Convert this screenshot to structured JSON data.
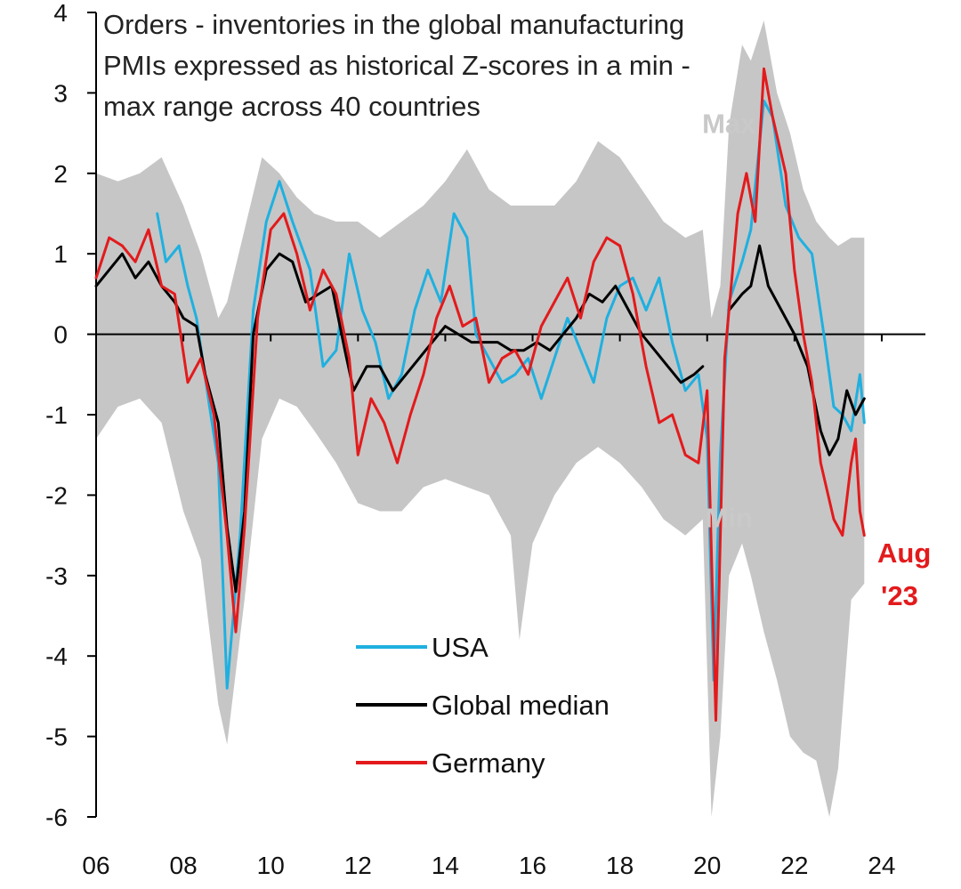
{
  "chart_data": {
    "type": "line",
    "title_lines": [
      "Orders - inventories in the global manufacturing",
      "PMIs expressed as historical Z-scores in a min -",
      "max range across 40 countries"
    ],
    "xlabel": "",
    "ylabel": "",
    "xlim": [
      2006,
      2025
    ],
    "ylim": [
      -6,
      4
    ],
    "x_ticks": [
      {
        "value": 2006,
        "label": "06"
      },
      {
        "value": 2008,
        "label": "08"
      },
      {
        "value": 2010,
        "label": "10"
      },
      {
        "value": 2012,
        "label": "12"
      },
      {
        "value": 2014,
        "label": "14"
      },
      {
        "value": 2016,
        "label": "16"
      },
      {
        "value": 2018,
        "label": "18"
      },
      {
        "value": 2020,
        "label": "20"
      },
      {
        "value": 2022,
        "label": "22"
      },
      {
        "value": 2024,
        "label": "24"
      }
    ],
    "y_ticks": [
      {
        "value": 4,
        "label": "4"
      },
      {
        "value": 3,
        "label": "3"
      },
      {
        "value": 2,
        "label": "2"
      },
      {
        "value": 1,
        "label": "1"
      },
      {
        "value": 0,
        "label": "0"
      },
      {
        "value": -1,
        "label": "-1"
      },
      {
        "value": -2,
        "label": "-2"
      },
      {
        "value": -3,
        "label": "-3"
      },
      {
        "value": -4,
        "label": "-4"
      },
      {
        "value": -5,
        "label": "-5"
      },
      {
        "value": -6,
        "label": "-6"
      }
    ],
    "band": {
      "name": "Min-max range",
      "color": "#c6c6c6",
      "max_label": "Max",
      "min_label": "Min",
      "max_label_at": {
        "x": 2020.5,
        "y": 2.5
      },
      "min_label_at": {
        "x": 2020.5,
        "y": -2.4
      },
      "upper": [
        [
          2006.0,
          2.0
        ],
        [
          2006.5,
          1.9
        ],
        [
          2007.0,
          2.0
        ],
        [
          2007.5,
          2.2
        ],
        [
          2008.0,
          1.6
        ],
        [
          2008.4,
          1.0
        ],
        [
          2008.8,
          0.2
        ],
        [
          2009.0,
          0.4
        ],
        [
          2009.4,
          1.3
        ],
        [
          2009.8,
          2.2
        ],
        [
          2010.2,
          2.0
        ],
        [
          2010.6,
          1.7
        ],
        [
          2011.0,
          1.5
        ],
        [
          2011.5,
          1.4
        ],
        [
          2012.0,
          1.4
        ],
        [
          2012.5,
          1.2
        ],
        [
          2013.0,
          1.4
        ],
        [
          2013.5,
          1.6
        ],
        [
          2014.0,
          1.9
        ],
        [
          2014.5,
          2.3
        ],
        [
          2015.0,
          1.8
        ],
        [
          2015.5,
          1.6
        ],
        [
          2016.0,
          1.6
        ],
        [
          2016.5,
          1.6
        ],
        [
          2017.0,
          1.9
        ],
        [
          2017.5,
          2.4
        ],
        [
          2018.0,
          2.2
        ],
        [
          2018.5,
          1.8
        ],
        [
          2019.0,
          1.4
        ],
        [
          2019.5,
          1.2
        ],
        [
          2019.9,
          1.3
        ],
        [
          2020.1,
          0.2
        ],
        [
          2020.3,
          0.6
        ],
        [
          2020.5,
          2.6
        ],
        [
          2020.8,
          3.6
        ],
        [
          2021.0,
          3.4
        ],
        [
          2021.3,
          3.9
        ],
        [
          2021.6,
          3.0
        ],
        [
          2021.9,
          2.5
        ],
        [
          2022.2,
          1.8
        ],
        [
          2022.5,
          1.4
        ],
        [
          2022.8,
          1.2
        ],
        [
          2023.0,
          1.1
        ],
        [
          2023.3,
          1.2
        ],
        [
          2023.6,
          1.2
        ]
      ],
      "lower": [
        [
          2006.0,
          -1.3
        ],
        [
          2006.5,
          -0.9
        ],
        [
          2007.0,
          -0.8
        ],
        [
          2007.5,
          -1.1
        ],
        [
          2008.0,
          -2.2
        ],
        [
          2008.4,
          -2.8
        ],
        [
          2008.8,
          -4.6
        ],
        [
          2009.0,
          -5.1
        ],
        [
          2009.4,
          -3.3
        ],
        [
          2009.8,
          -1.3
        ],
        [
          2010.2,
          -0.8
        ],
        [
          2010.6,
          -0.9
        ],
        [
          2011.0,
          -1.2
        ],
        [
          2011.5,
          -1.6
        ],
        [
          2012.0,
          -2.1
        ],
        [
          2012.5,
          -2.2
        ],
        [
          2013.0,
          -2.2
        ],
        [
          2013.5,
          -1.9
        ],
        [
          2014.0,
          -1.8
        ],
        [
          2014.5,
          -1.9
        ],
        [
          2015.0,
          -2.0
        ],
        [
          2015.5,
          -2.5
        ],
        [
          2015.7,
          -3.8
        ],
        [
          2016.0,
          -2.6
        ],
        [
          2016.5,
          -2.0
        ],
        [
          2017.0,
          -1.6
        ],
        [
          2017.5,
          -1.4
        ],
        [
          2018.0,
          -1.6
        ],
        [
          2018.5,
          -1.9
        ],
        [
          2019.0,
          -2.3
        ],
        [
          2019.5,
          -2.5
        ],
        [
          2019.9,
          -2.3
        ],
        [
          2020.1,
          -6.0
        ],
        [
          2020.3,
          -5.0
        ],
        [
          2020.5,
          -3.0
        ],
        [
          2020.8,
          -2.6
        ],
        [
          2021.0,
          -3.0
        ],
        [
          2021.3,
          -3.7
        ],
        [
          2021.6,
          -4.3
        ],
        [
          2021.9,
          -5.0
        ],
        [
          2022.2,
          -5.2
        ],
        [
          2022.5,
          -5.3
        ],
        [
          2022.8,
          -6.0
        ],
        [
          2023.0,
          -5.4
        ],
        [
          2023.3,
          -3.3
        ],
        [
          2023.6,
          -3.1
        ]
      ]
    },
    "series": [
      {
        "name": "USA",
        "color": "#1fb0e0",
        "points": [
          [
            2007.4,
            1.5
          ],
          [
            2007.6,
            0.9
          ],
          [
            2007.9,
            1.1
          ],
          [
            2008.1,
            0.6
          ],
          [
            2008.3,
            0.2
          ],
          [
            2008.6,
            -0.9
          ],
          [
            2008.8,
            -1.6
          ],
          [
            2009.0,
            -4.4
          ],
          [
            2009.3,
            -2.5
          ],
          [
            2009.6,
            0.3
          ],
          [
            2009.9,
            1.4
          ],
          [
            2010.2,
            1.9
          ],
          [
            2010.5,
            1.4
          ],
          [
            2010.9,
            0.8
          ],
          [
            2011.2,
            -0.4
          ],
          [
            2011.5,
            -0.2
          ],
          [
            2011.8,
            1.0
          ],
          [
            2012.1,
            0.3
          ],
          [
            2012.4,
            -0.1
          ],
          [
            2012.7,
            -0.8
          ],
          [
            2013.0,
            -0.5
          ],
          [
            2013.3,
            0.3
          ],
          [
            2013.6,
            0.8
          ],
          [
            2013.9,
            0.4
          ],
          [
            2014.2,
            1.5
          ],
          [
            2014.5,
            1.2
          ],
          [
            2014.7,
            0.0
          ],
          [
            2015.0,
            -0.3
          ],
          [
            2015.3,
            -0.6
          ],
          [
            2015.6,
            -0.5
          ],
          [
            2015.9,
            -0.3
          ],
          [
            2016.2,
            -0.8
          ],
          [
            2016.5,
            -0.3
          ],
          [
            2016.8,
            0.2
          ],
          [
            2017.1,
            -0.2
          ],
          [
            2017.4,
            -0.6
          ],
          [
            2017.7,
            0.2
          ],
          [
            2018.0,
            0.6
          ],
          [
            2018.3,
            0.7
          ],
          [
            2018.6,
            0.3
          ],
          [
            2018.9,
            0.7
          ],
          [
            2019.2,
            -0.1
          ],
          [
            2019.5,
            -0.7
          ],
          [
            2019.8,
            -0.5
          ],
          [
            2020.0,
            -1.3
          ],
          [
            2020.15,
            -4.3
          ],
          [
            2020.3,
            -1.5
          ],
          [
            2020.5,
            0.4
          ],
          [
            2020.8,
            0.9
          ],
          [
            2021.0,
            1.3
          ],
          [
            2021.3,
            2.9
          ],
          [
            2021.5,
            2.7
          ],
          [
            2021.8,
            1.6
          ],
          [
            2022.1,
            1.2
          ],
          [
            2022.4,
            1.0
          ],
          [
            2022.7,
            -0.1
          ],
          [
            2022.9,
            -0.9
          ],
          [
            2023.1,
            -1.0
          ],
          [
            2023.3,
            -1.2
          ],
          [
            2023.5,
            -0.5
          ],
          [
            2023.6,
            -1.1
          ]
        ]
      },
      {
        "name": "Global median",
        "color": "#000000",
        "points": [
          [
            2006.0,
            0.6
          ],
          [
            2006.3,
            0.8
          ],
          [
            2006.6,
            1.0
          ],
          [
            2006.9,
            0.7
          ],
          [
            2007.2,
            0.9
          ],
          [
            2007.5,
            0.6
          ],
          [
            2007.8,
            0.4
          ],
          [
            2008.0,
            0.2
          ],
          [
            2008.3,
            0.1
          ],
          [
            2008.5,
            -0.5
          ],
          [
            2008.8,
            -1.1
          ],
          [
            2009.0,
            -2.4
          ],
          [
            2009.2,
            -3.2
          ],
          [
            2009.4,
            -2.2
          ],
          [
            2009.6,
            0.0
          ],
          [
            2009.9,
            0.8
          ],
          [
            2010.2,
            1.0
          ],
          [
            2010.5,
            0.9
          ],
          [
            2010.8,
            0.4
          ],
          [
            2011.1,
            0.5
          ],
          [
            2011.4,
            0.6
          ],
          [
            2011.7,
            -0.2
          ],
          [
            2011.9,
            -0.7
          ],
          [
            2012.2,
            -0.4
          ],
          [
            2012.5,
            -0.4
          ],
          [
            2012.8,
            -0.7
          ],
          [
            2013.1,
            -0.5
          ],
          [
            2013.4,
            -0.3
          ],
          [
            2013.7,
            -0.1
          ],
          [
            2014.0,
            0.1
          ],
          [
            2014.3,
            0.0
          ],
          [
            2014.6,
            -0.1
          ],
          [
            2014.9,
            -0.1
          ],
          [
            2015.2,
            -0.1
          ],
          [
            2015.5,
            -0.2
          ],
          [
            2015.8,
            -0.2
          ],
          [
            2016.1,
            -0.1
          ],
          [
            2016.4,
            -0.2
          ],
          [
            2016.7,
            0.0
          ],
          [
            2017.0,
            0.2
          ],
          [
            2017.3,
            0.5
          ],
          [
            2017.6,
            0.4
          ],
          [
            2017.9,
            0.6
          ],
          [
            2018.2,
            0.3
          ],
          [
            2018.5,
            0.0
          ],
          [
            2018.8,
            -0.2
          ],
          [
            2019.1,
            -0.4
          ],
          [
            2019.4,
            -0.6
          ],
          [
            2019.7,
            -0.5
          ],
          [
            2019.9,
            -0.4
          ]
        ]
      },
      {
        "name": "Global median (post-2020)",
        "color": "#000000",
        "legend": false,
        "points": [
          [
            2020.5,
            0.3
          ],
          [
            2020.8,
            0.5
          ],
          [
            2021.0,
            0.6
          ],
          [
            2021.2,
            1.1
          ],
          [
            2021.4,
            0.6
          ],
          [
            2021.7,
            0.3
          ],
          [
            2022.0,
            0.0
          ],
          [
            2022.3,
            -0.4
          ],
          [
            2022.6,
            -1.2
          ],
          [
            2022.8,
            -1.5
          ],
          [
            2023.0,
            -1.3
          ],
          [
            2023.2,
            -0.7
          ],
          [
            2023.4,
            -1.0
          ],
          [
            2023.6,
            -0.8
          ]
        ]
      },
      {
        "name": "Germany",
        "color": "#e31a1c",
        "points": [
          [
            2006.0,
            0.7
          ],
          [
            2006.3,
            1.2
          ],
          [
            2006.6,
            1.1
          ],
          [
            2006.9,
            0.9
          ],
          [
            2007.2,
            1.3
          ],
          [
            2007.5,
            0.6
          ],
          [
            2007.8,
            0.5
          ],
          [
            2008.1,
            -0.6
          ],
          [
            2008.4,
            -0.3
          ],
          [
            2008.7,
            -1.0
          ],
          [
            2009.0,
            -2.5
          ],
          [
            2009.2,
            -3.7
          ],
          [
            2009.4,
            -2.4
          ],
          [
            2009.7,
            0.2
          ],
          [
            2010.0,
            1.3
          ],
          [
            2010.3,
            1.5
          ],
          [
            2010.6,
            1.0
          ],
          [
            2010.9,
            0.3
          ],
          [
            2011.2,
            0.8
          ],
          [
            2011.5,
            0.5
          ],
          [
            2011.8,
            -0.3
          ],
          [
            2012.0,
            -1.5
          ],
          [
            2012.3,
            -0.8
          ],
          [
            2012.6,
            -1.1
          ],
          [
            2012.9,
            -1.6
          ],
          [
            2013.2,
            -1.0
          ],
          [
            2013.5,
            -0.5
          ],
          [
            2013.8,
            0.2
          ],
          [
            2014.1,
            0.6
          ],
          [
            2014.4,
            0.1
          ],
          [
            2014.7,
            0.2
          ],
          [
            2015.0,
            -0.6
          ],
          [
            2015.3,
            -0.3
          ],
          [
            2015.6,
            -0.2
          ],
          [
            2015.9,
            -0.5
          ],
          [
            2016.2,
            0.1
          ],
          [
            2016.5,
            0.4
          ],
          [
            2016.8,
            0.7
          ],
          [
            2017.1,
            0.2
          ],
          [
            2017.4,
            0.9
          ],
          [
            2017.7,
            1.2
          ],
          [
            2018.0,
            1.1
          ],
          [
            2018.3,
            0.5
          ],
          [
            2018.6,
            -0.4
          ],
          [
            2018.9,
            -1.1
          ],
          [
            2019.2,
            -1.0
          ],
          [
            2019.5,
            -1.5
          ],
          [
            2019.8,
            -1.6
          ],
          [
            2020.0,
            -0.7
          ],
          [
            2020.2,
            -4.8
          ],
          [
            2020.4,
            -0.3
          ],
          [
            2020.7,
            1.5
          ],
          [
            2020.9,
            2.0
          ],
          [
            2021.1,
            1.4
          ],
          [
            2021.3,
            3.3
          ],
          [
            2021.5,
            2.7
          ],
          [
            2021.8,
            2.0
          ],
          [
            2022.0,
            0.8
          ],
          [
            2022.2,
            0.0
          ],
          [
            2022.4,
            -0.6
          ],
          [
            2022.6,
            -1.6
          ],
          [
            2022.9,
            -2.3
          ],
          [
            2023.1,
            -2.5
          ],
          [
            2023.3,
            -1.6
          ],
          [
            2023.4,
            -1.3
          ],
          [
            2023.5,
            -2.2
          ],
          [
            2023.6,
            -2.5
          ]
        ]
      }
    ],
    "legend": [
      {
        "label": "USA",
        "color": "#1fb0e0"
      },
      {
        "label": "Global median",
        "color": "#000000"
      },
      {
        "label": "Germany",
        "color": "#e31a1c"
      }
    ],
    "legend_position": "bottom-center",
    "end_label": {
      "lines": [
        "Aug",
        "'23"
      ],
      "color": "#e31a1c"
    }
  }
}
